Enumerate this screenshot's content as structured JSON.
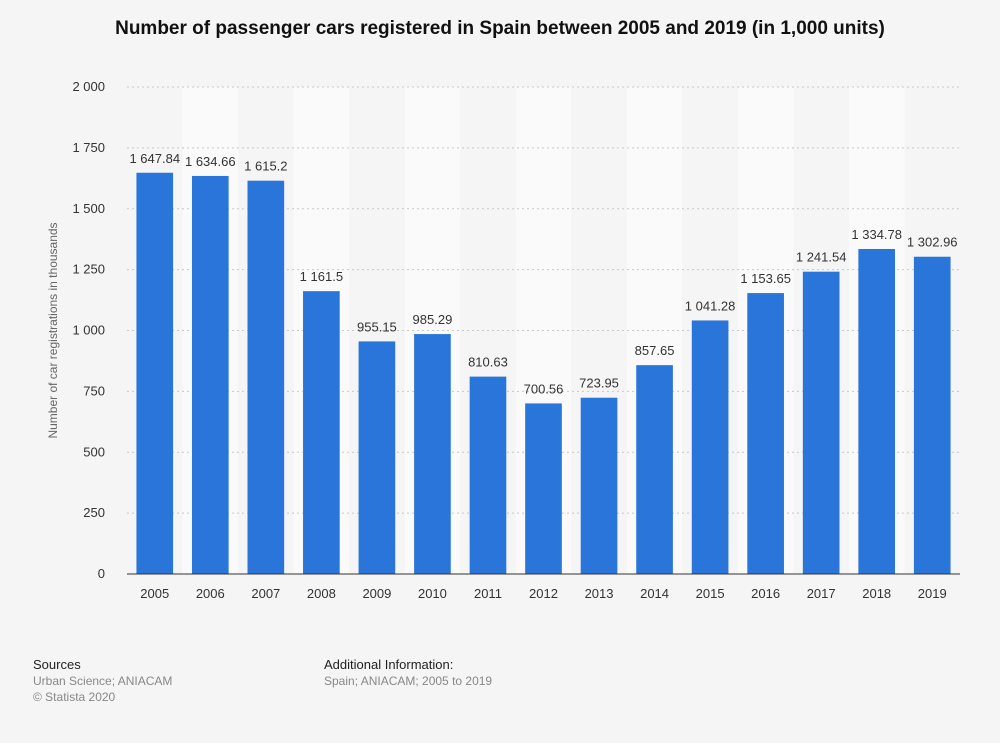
{
  "chart_data": {
    "type": "bar",
    "title": "Number of passenger cars registered in Spain between 2005 and 2019 (in 1,000 units)",
    "xlabel": "",
    "ylabel": "Number of car registrations in thousands",
    "ylim": [
      0,
      2000
    ],
    "yticks": [
      0,
      250,
      500,
      750,
      1000,
      1250,
      1500,
      1750,
      2000
    ],
    "ytick_labels": [
      "0",
      "250",
      "500",
      "750",
      "1 000",
      "1 250",
      "1 500",
      "1 750",
      "2 000"
    ],
    "categories": [
      "2005",
      "2006",
      "2007",
      "2008",
      "2009",
      "2010",
      "2011",
      "2012",
      "2013",
      "2014",
      "2015",
      "2016",
      "2017",
      "2018",
      "2019"
    ],
    "values": [
      1647.84,
      1634.66,
      1615.2,
      1161.5,
      955.15,
      985.29,
      810.63,
      700.56,
      723.95,
      857.65,
      1041.28,
      1153.65,
      1241.54,
      1334.78,
      1302.96
    ],
    "value_labels": [
      "1 647.84",
      "1 634.66",
      "1 615.2",
      "1 161.5",
      "955.15",
      "985.29",
      "810.63",
      "700.56",
      "723.95",
      "857.65",
      "1 041.28",
      "1 153.65",
      "1 241.54",
      "1 334.78",
      "1 302.96"
    ],
    "bar_color": "#2a75d9",
    "grid": true,
    "legend": "none"
  },
  "footer": {
    "sources_heading": "Sources",
    "sources_line1": "Urban Science; ANIACAM",
    "sources_line2": "© Statista 2020",
    "info_heading": "Additional Information:",
    "info_line1": "Spain; ANIACAM; 2005 to 2019"
  }
}
